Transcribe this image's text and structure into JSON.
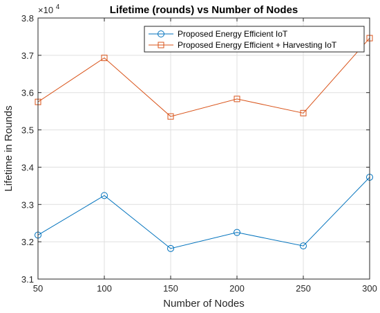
{
  "chart_data": {
    "type": "line",
    "title": "Lifetime (rounds) vs Number of Nodes",
    "xlabel": "Number of Nodes",
    "ylabel": "Lifetime in Rounds",
    "y_exponent_base": "×10",
    "y_exponent_power": "4",
    "x": [
      50,
      100,
      150,
      200,
      250,
      300
    ],
    "xlim": [
      50,
      300
    ],
    "ylim": [
      3.1,
      3.8
    ],
    "x_ticks": [
      "50",
      "100",
      "150",
      "200",
      "250",
      "300"
    ],
    "y_ticks": [
      "3.1",
      "3.2",
      "3.3",
      "3.4",
      "3.5",
      "3.6",
      "3.7",
      "3.8"
    ],
    "grid": true,
    "legend_position": "top-right",
    "series": [
      {
        "name": "Proposed Energy Efficient IoT",
        "values": [
          3.218,
          3.324,
          3.182,
          3.225,
          3.189,
          3.373
        ],
        "color": "#0072BD",
        "marker": "circle"
      },
      {
        "name": "Proposed Energy Efficient + Harvesting IoT",
        "values": [
          3.575,
          3.693,
          3.536,
          3.583,
          3.545,
          3.746
        ],
        "color": "#D95319",
        "marker": "square"
      }
    ]
  }
}
